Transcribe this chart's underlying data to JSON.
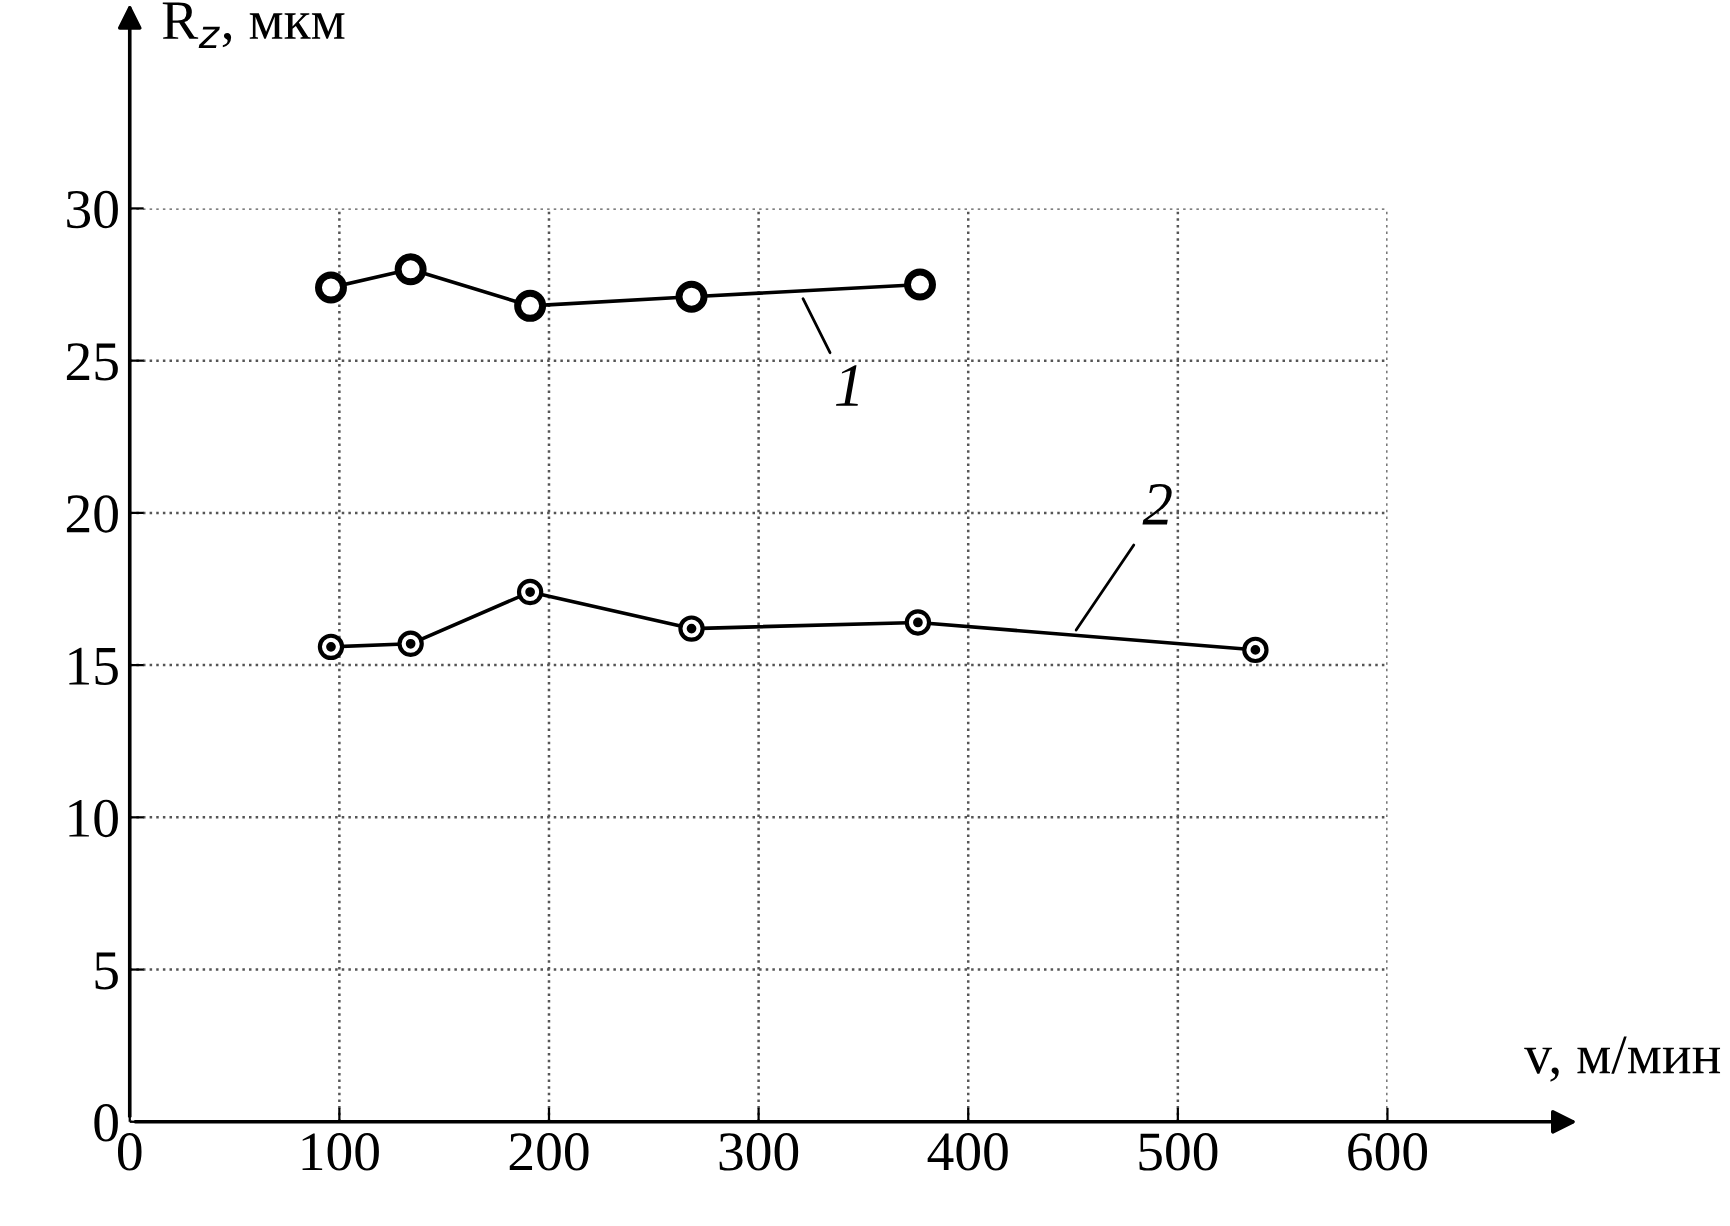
{
  "chart_data": {
    "type": "line",
    "xlabel": "v, м/мин",
    "ylabel": "R$_{z}$, мкм",
    "xlim": [
      0,
      600
    ],
    "ylim": [
      0,
      30
    ],
    "xticks": [
      0,
      100,
      200,
      300,
      400,
      500,
      600
    ],
    "yticks": [
      0,
      5,
      10,
      15,
      20,
      25,
      30
    ],
    "grid": true,
    "marker": "circle",
    "line_style": "solid",
    "series": [
      {
        "color": "#000000",
        "x": [
          96,
          134,
          191,
          268,
          377
        ],
        "values": [
          27.4,
          28.0,
          26.8,
          27.1,
          27.5
        ]
      },
      {
        "color": "#000000",
        "x": [
          96,
          134,
          191,
          268,
          376,
          537
        ],
        "values": [
          15.6,
          15.7,
          17.4,
          16.2,
          16.4,
          15.5
        ]
      }
    ],
    "annotations": [
      {
        "text": "1",
        "x": 320,
        "y": 27.2
      },
      {
        "text": "2",
        "x": 450,
        "y": 16.0
      }
    ]
  }
}
